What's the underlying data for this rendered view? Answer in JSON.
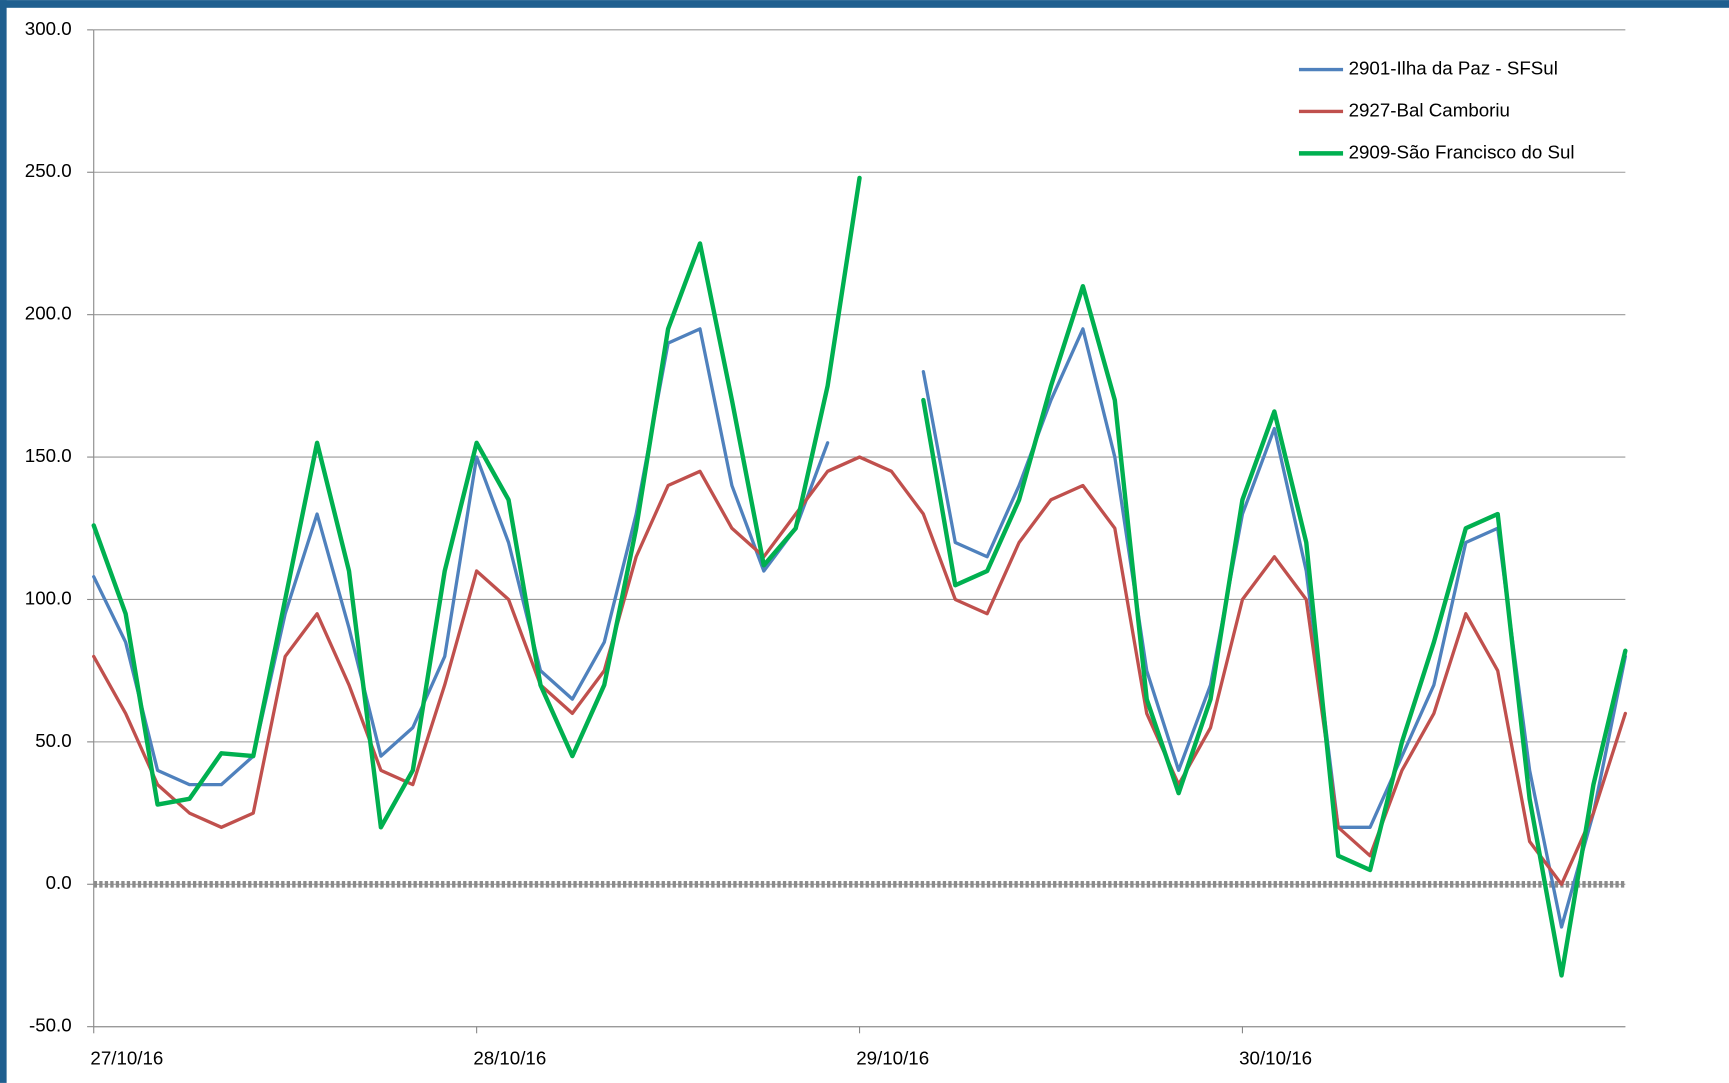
{
  "chart_data": {
    "type": "line",
    "categories": [
      "27/10/16",
      null,
      null,
      null,
      null,
      null,
      null,
      null,
      null,
      null,
      null,
      null,
      "28/10/16",
      null,
      null,
      null,
      null,
      null,
      null,
      null,
      null,
      null,
      null,
      null,
      "29/10/16",
      null,
      null,
      null,
      null,
      null,
      null,
      null,
      null,
      null,
      null,
      null,
      "30/10/16",
      null,
      null,
      null,
      null,
      null,
      null,
      null,
      null,
      null,
      null,
      null,
      null
    ],
    "series": [
      {
        "name": "2901-Ilha da Paz - SFSul",
        "color": "#4f81bd",
        "width": 3,
        "values": [
          108,
          85,
          40,
          35,
          35,
          45,
          95,
          130,
          90,
          45,
          55,
          80,
          150,
          120,
          75,
          65,
          85,
          130,
          190,
          195,
          140,
          110,
          125,
          155,
          null,
          null,
          180,
          120,
          115,
          140,
          170,
          195,
          150,
          75,
          40,
          70,
          130,
          160,
          110,
          20,
          20,
          45,
          70,
          120,
          125,
          40,
          -15,
          25,
          80
        ]
      },
      {
        "name": "2927-Bal Camboriu",
        "color": "#c0504d",
        "width": 3,
        "values": [
          80,
          60,
          35,
          25,
          20,
          25,
          80,
          95,
          70,
          40,
          35,
          70,
          110,
          100,
          70,
          60,
          75,
          115,
          140,
          145,
          125,
          115,
          130,
          145,
          150,
          145,
          130,
          100,
          95,
          120,
          135,
          140,
          125,
          60,
          35,
          55,
          100,
          115,
          100,
          20,
          10,
          40,
          60,
          95,
          75,
          15,
          0,
          25,
          60
        ]
      },
      {
        "name": "2909-São Francisco do Sul",
        "color": "#00b050",
        "width": 4,
        "values": [
          126,
          95,
          28,
          30,
          46,
          45,
          100,
          155,
          110,
          20,
          40,
          110,
          155,
          135,
          70,
          45,
          70,
          125,
          195,
          225,
          170,
          112,
          125,
          175,
          248,
          null,
          170,
          105,
          110,
          135,
          175,
          210,
          170,
          65,
          32,
          65,
          135,
          166,
          120,
          10,
          5,
          50,
          85,
          125,
          130,
          30,
          -32,
          35,
          82
        ]
      }
    ],
    "ylim": [
      -50,
      300
    ],
    "yticks": [
      {
        "value": -50,
        "label": "-50.0"
      },
      {
        "value": 0,
        "label": "0.0"
      },
      {
        "value": 50,
        "label": "50.0"
      },
      {
        "value": 100,
        "label": "100.0"
      },
      {
        "value": 150,
        "label": "150.0"
      },
      {
        "value": 200,
        "label": "200.0"
      },
      {
        "value": 250,
        "label": "250.0"
      },
      {
        "value": 300,
        "label": "300.0"
      }
    ],
    "grid": true,
    "zero_line": true,
    "legend": "top-right"
  }
}
